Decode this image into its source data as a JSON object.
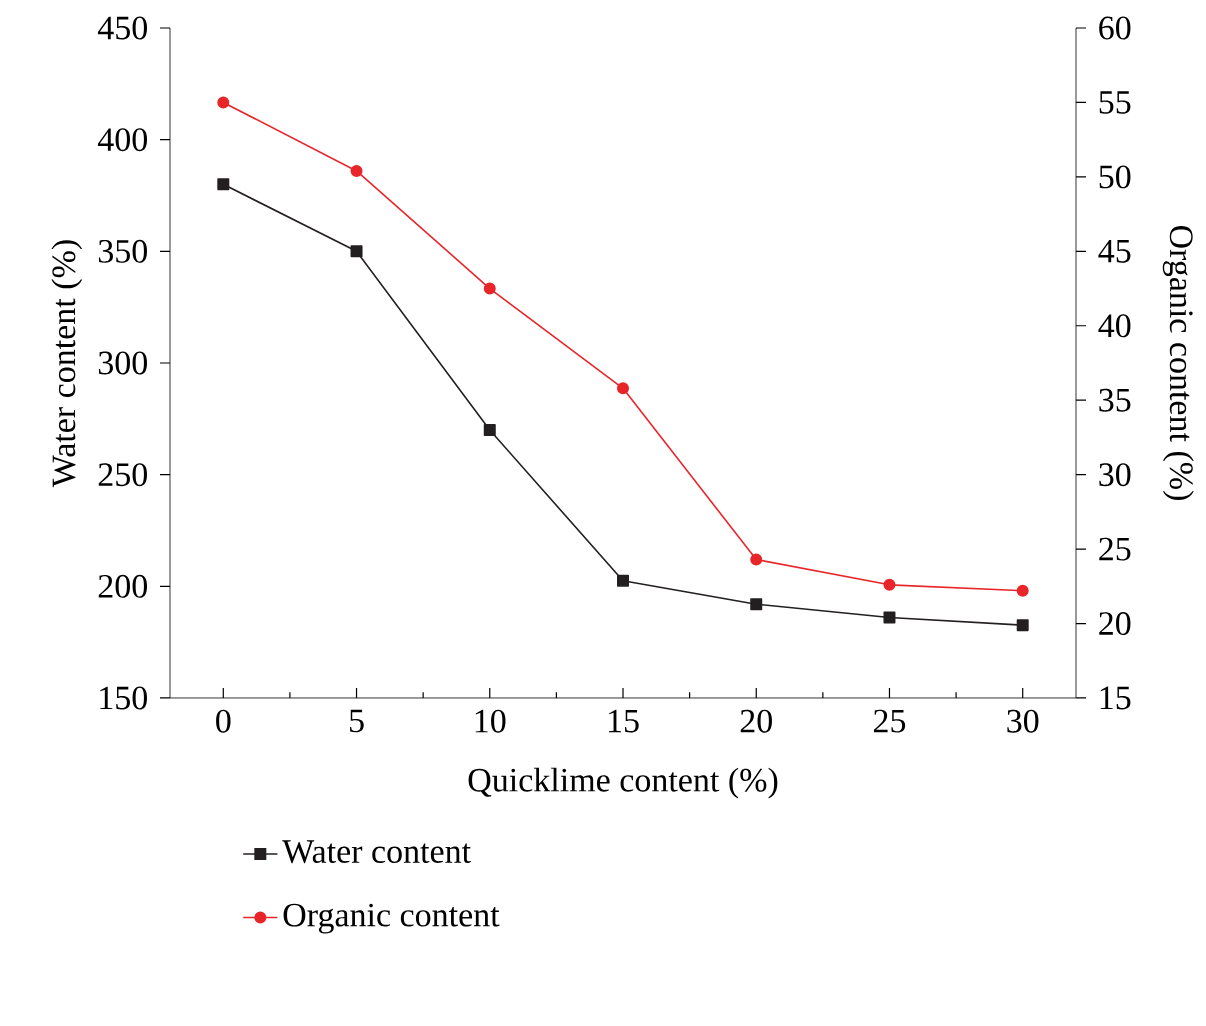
{
  "chart_data": {
    "type": "line",
    "xlabel": "Quicklime content (%)",
    "ylabel": "Water content (%)",
    "y2label": "Organic content (%)",
    "x": [
      0,
      5,
      10,
      15,
      20,
      25,
      30
    ],
    "xlim": [
      -2,
      32
    ],
    "xticks": [
      0,
      5,
      10,
      15,
      20,
      25,
      30
    ],
    "ylim": [
      150,
      450
    ],
    "yticks": [
      150,
      200,
      250,
      300,
      350,
      400,
      450
    ],
    "y2lim": [
      15,
      60
    ],
    "y2ticks": [
      15,
      20,
      25,
      30,
      35,
      40,
      45,
      50,
      55,
      60
    ],
    "legend": "bottom",
    "grid": false,
    "series": [
      {
        "name": "Water content",
        "color": "#231f20",
        "marker": "square",
        "values": [
          380,
          350,
          270,
          202.5,
          192,
          186,
          182.6
        ]
      },
      {
        "name": "Organic content",
        "color": "#e8262a",
        "marker": "circle",
        "axis": "y2",
        "values": [
          55,
          50.4,
          42.5,
          35.8,
          24.3,
          22.6,
          22.2
        ]
      }
    ]
  }
}
